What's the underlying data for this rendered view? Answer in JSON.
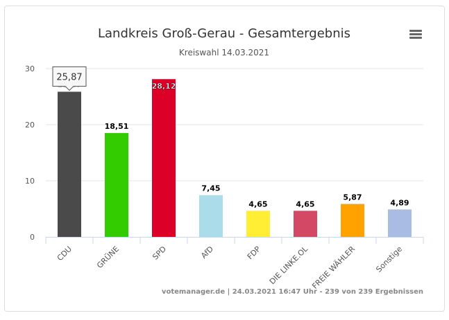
{
  "chart_data": {
    "type": "bar",
    "title": "Landkreis Groß-Gerau - Gesamtergebnis",
    "subtitle": "Kreiswahl 14.03.2021",
    "categories": [
      "CDU",
      "GRÜNE",
      "SPD",
      "AfD",
      "FDP",
      "DIE LINKE.OL",
      "FREIE WÄHLER",
      "Sonstige"
    ],
    "values": [
      25.87,
      18.51,
      28.12,
      7.45,
      4.65,
      4.65,
      5.87,
      4.89
    ],
    "labels": [
      "25,87",
      "18,51",
      "28,12",
      "7,45",
      "4,65",
      "4,65",
      "5,87",
      "4,89"
    ],
    "colors": [
      "#4a4a4a",
      "#33cc00",
      "#dc0029",
      "#aadcea",
      "#ffee33",
      "#d34864",
      "#ffa200",
      "#a9bce3"
    ],
    "ylim": [
      0,
      30
    ],
    "yticks": [
      "0",
      "10",
      "20",
      "30"
    ],
    "xlabel": "",
    "ylabel": "",
    "grid": true,
    "tooltip": {
      "category": "CDU",
      "text": "25,87"
    },
    "credits": "votemanager.de | 24.03.2021 16:47 Uhr - 239 von 239 Ergebnissen"
  },
  "menu_icon": "hamburger-menu-icon"
}
